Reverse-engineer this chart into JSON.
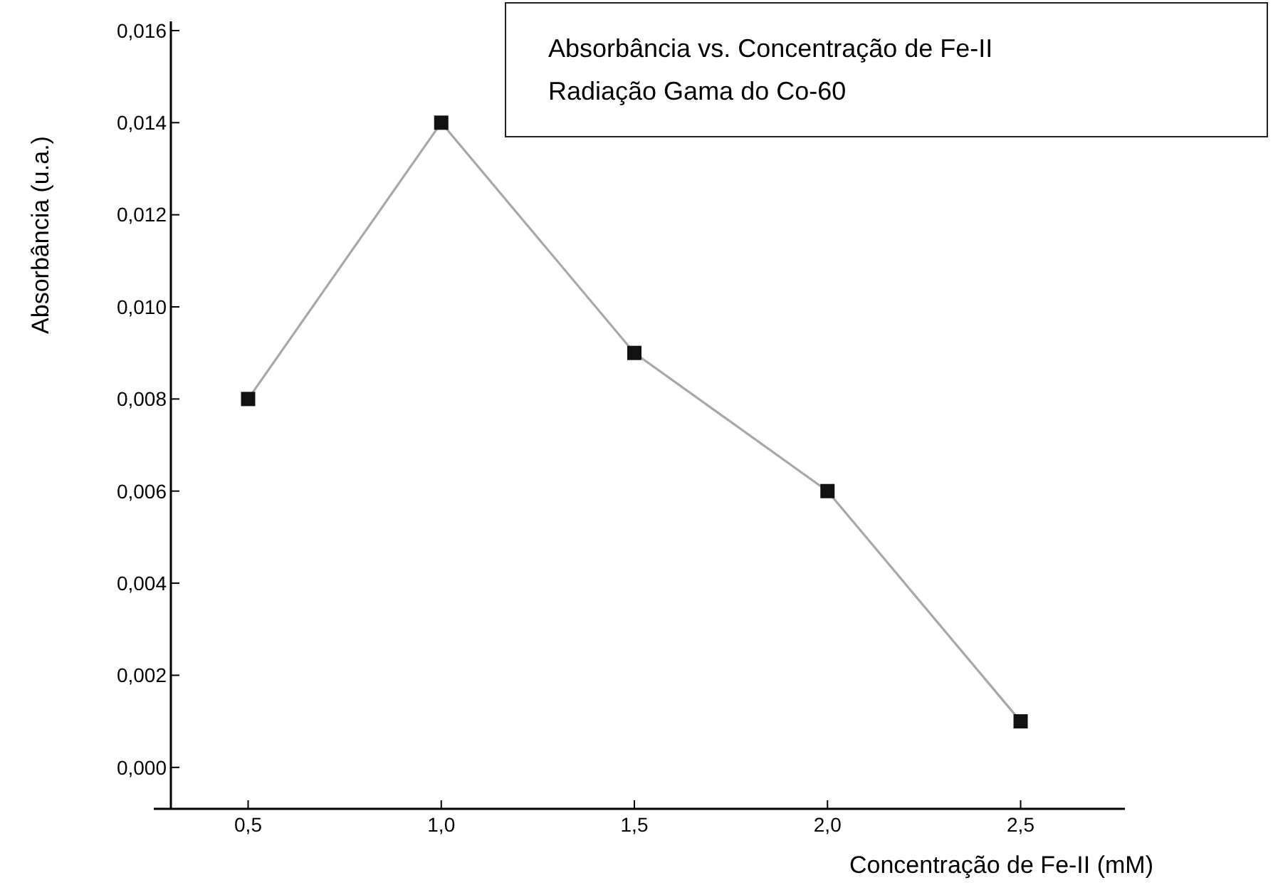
{
  "chart_data": {
    "type": "line",
    "title": "Absorbância vs. Concentração de Fe-II",
    "subtitle": "Radiação Gama do Co-60",
    "xlabel": "Concentração de Fe-II (mM)",
    "ylabel": "Absorbância (u.a.)",
    "x": [
      0.5,
      1.0,
      1.5,
      2.0,
      2.5
    ],
    "series": [
      {
        "color": "#111111",
        "values": [
          0.008,
          0.014,
          0.009,
          0.006,
          0.001
        ]
      }
    ],
    "marker": "square",
    "line_style": "solid",
    "grid": false,
    "xlim": [
      0.3,
      2.77
    ],
    "ylim": [
      -0.0009,
      0.0162
    ],
    "xticks": [
      {
        "value": 0.5,
        "label": "0,5"
      },
      {
        "value": 1.0,
        "label": "1,0"
      },
      {
        "value": 1.5,
        "label": "1,5"
      },
      {
        "value": 2.0,
        "label": "2,0"
      },
      {
        "value": 2.5,
        "label": "2,5"
      }
    ],
    "yticks": [
      {
        "value": 0,
        "label": "0,000"
      },
      {
        "value": 0.002,
        "label": "0,002"
      },
      {
        "value": 0.004,
        "label": "0,004"
      },
      {
        "value": 0.006,
        "label": "0,006"
      },
      {
        "value": 0.008,
        "label": "0,008"
      },
      {
        "value": 0.01,
        "label": "0,010"
      },
      {
        "value": 0.012,
        "label": "0,012"
      },
      {
        "value": 0.014,
        "label": "0,014"
      },
      {
        "value": 0.016,
        "label": "0,016"
      }
    ]
  }
}
